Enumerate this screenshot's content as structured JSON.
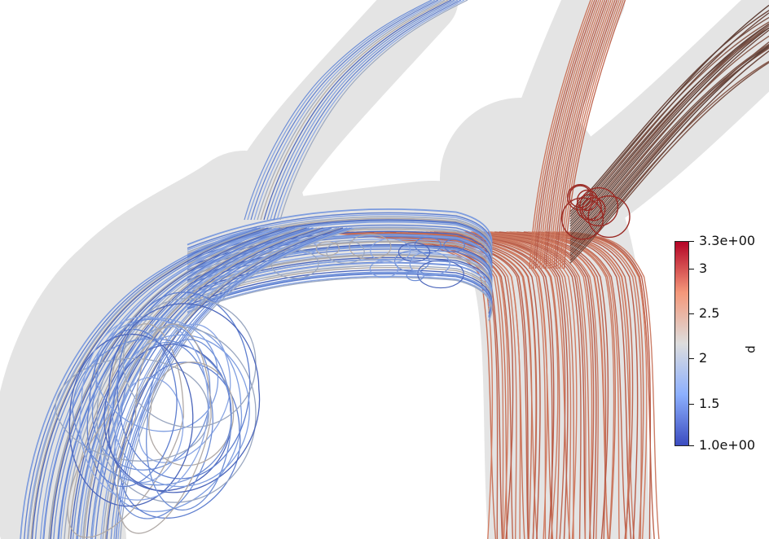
{
  "colorbar": {
    "title": "p",
    "min_label": "1.0e+00",
    "max_label": "3.3e+00",
    "ticks": [
      "3",
      "2.5",
      "2",
      "1.5"
    ],
    "tick_values": [
      3,
      2.5,
      2,
      1.5
    ],
    "min": 1.0,
    "max": 3.3,
    "colors": {
      "low": "#3b4cc0",
      "mid": "#dddddd",
      "high": "#b40426"
    }
  },
  "scene": {
    "vessel_color": "#e6e6e6",
    "background": "#ffffff"
  }
}
